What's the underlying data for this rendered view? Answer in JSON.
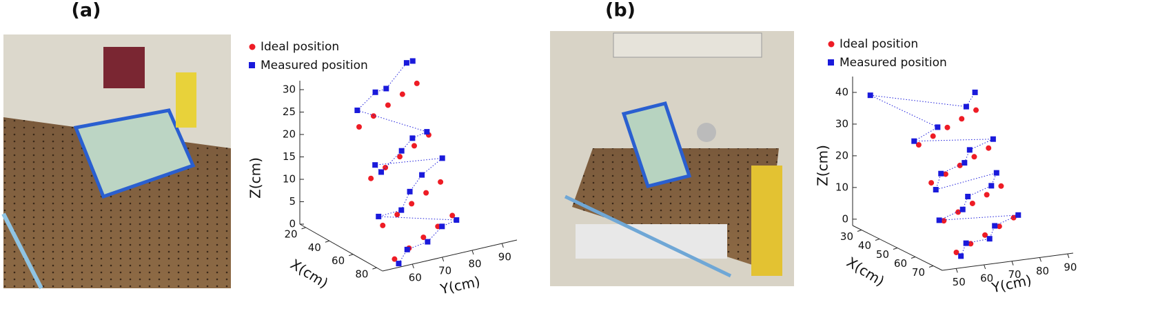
{
  "chart_data": [
    {
      "type": "scatter3d",
      "title": "(a)",
      "xlabel": "X(cm)",
      "ylabel": "Y(cm)",
      "zlabel": "Z(cm)",
      "xlim": [
        15,
        85
      ],
      "ylim": [
        50,
        95
      ],
      "zlim": [
        0,
        32
      ],
      "xticks": [
        20,
        40,
        60,
        80
      ],
      "yticks": [
        60,
        70,
        80,
        90
      ],
      "zticks": [
        0,
        5,
        10,
        15,
        20,
        25,
        30
      ],
      "series": [
        {
          "name": "Ideal position",
          "color": "#ee1c25",
          "marker": "circle",
          "x": [
            80,
            72,
            64,
            56,
            48,
            70,
            62,
            54,
            46,
            38,
            60,
            52,
            44,
            36,
            28,
            50,
            42,
            34,
            26,
            18
          ],
          "y": [
            56,
            64,
            72,
            80,
            88,
            56,
            64,
            72,
            80,
            88,
            56,
            64,
            72,
            80,
            88,
            56,
            64,
            72,
            80,
            88
          ],
          "z": [
            1,
            1,
            1,
            1,
            1,
            7,
            7,
            7,
            7,
            7,
            16,
            16,
            16,
            16,
            16,
            26,
            26,
            26,
            26,
            26
          ]
        },
        {
          "name": "Measured position",
          "color": "#1a1adb",
          "marker": "square",
          "linestyle": "dotted",
          "x": [
            81,
            73,
            65,
            57,
            49,
            69,
            63,
            55,
            45,
            37,
            61,
            51,
            43,
            37,
            29,
            51,
            41,
            35,
            27,
            17
          ],
          "y": [
            57,
            63,
            73,
            81,
            89,
            55,
            65,
            71,
            79,
            89,
            57,
            63,
            73,
            79,
            87,
            55,
            65,
            71,
            81,
            87
          ],
          "z": [
            0,
            1,
            0,
            1,
            0,
            9,
            8,
            10,
            11,
            12,
            19,
            15,
            17,
            18,
            17,
            30,
            31,
            30,
            33,
            31
          ]
        }
      ]
    },
    {
      "type": "scatter3d",
      "title": "(b)",
      "xlabel": "X(cm)",
      "ylabel": "Y(cm)",
      "zlabel": "Z(cm)",
      "xlim": [
        25,
        75
      ],
      "ylim": [
        45,
        92
      ],
      "zlim": [
        -2,
        45
      ],
      "xticks": [
        30,
        40,
        50,
        60,
        70
      ],
      "yticks": [
        50,
        60,
        70,
        80,
        90
      ],
      "zticks": [
        0,
        10,
        20,
        30,
        40
      ],
      "series": [
        {
          "name": "Ideal position",
          "color": "#ee1c25",
          "marker": "circle",
          "x": [
            72,
            66,
            60,
            54,
            48,
            65,
            59,
            53,
            47,
            41,
            58,
            52,
            46,
            40,
            34,
            51,
            45,
            39,
            33,
            27
          ],
          "y": [
            52,
            61,
            70,
            79,
            88,
            52,
            61,
            70,
            79,
            88,
            52,
            61,
            70,
            79,
            88,
            52,
            61,
            70,
            79,
            88
          ],
          "z": [
            2,
            2,
            2,
            2,
            2,
            10,
            10,
            10,
            10,
            10,
            20,
            20,
            20,
            20,
            20,
            30,
            30,
            30,
            30,
            30
          ]
        },
        {
          "name": "Measured position",
          "color": "#1a1adb",
          "marker": "square",
          "linestyle": "dotted",
          "x": [
            73,
            65,
            61,
            53,
            49,
            64,
            60,
            52,
            48,
            40,
            59,
            51,
            47,
            39,
            35,
            50,
            46,
            38,
            34,
            28
          ],
          "y": [
            53,
            60,
            71,
            78,
            89,
            51,
            62,
            69,
            80,
            87,
            53,
            60,
            71,
            78,
            89,
            51,
            62,
            43,
            80,
            87
          ],
          "z": [
            1,
            2,
            1,
            2,
            3,
            10,
            11,
            12,
            13,
            14,
            18,
            20,
            21,
            22,
            23,
            31,
            33,
            43,
            34,
            36
          ]
        }
      ]
    }
  ]
}
